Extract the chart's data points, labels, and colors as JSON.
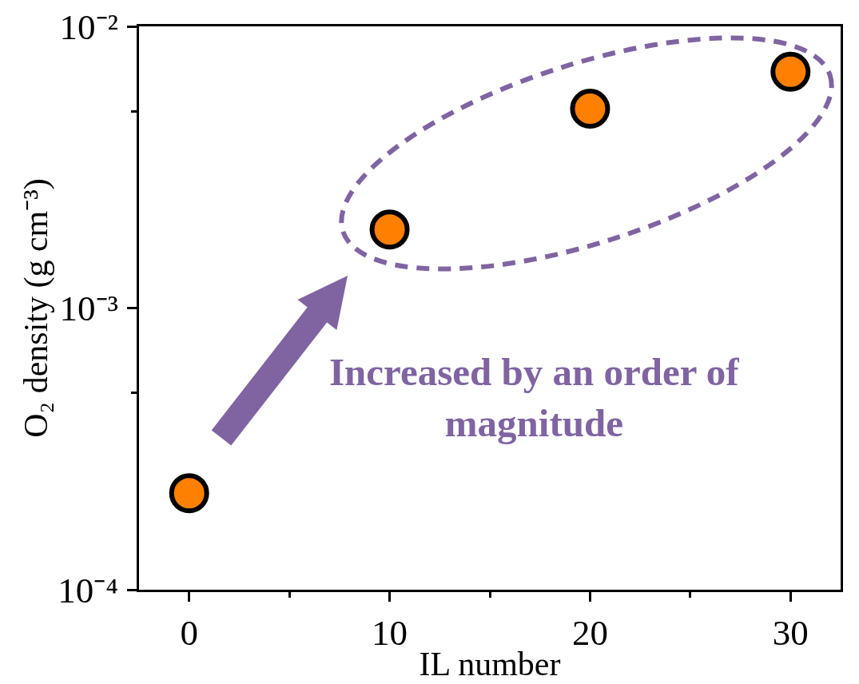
{
  "chart_data": {
    "type": "scatter",
    "xlabel": "IL number",
    "ylabel": "O₂ density (g cm⁻³)",
    "x": [
      0,
      10,
      20,
      30
    ],
    "series": [
      {
        "color": "#ff8000",
        "values": [
          0.00022,
          0.0019,
          0.0051,
          0.0069
        ]
      }
    ],
    "marker": "circle",
    "log": "y",
    "xlim": [
      -2.5,
      32.5
    ],
    "xticks": [
      0,
      {
        "value": 5,
        "label": null
      },
      10,
      {
        "value": 15,
        "label": null
      },
      20,
      {
        "value": 25,
        "label": null
      },
      30
    ],
    "ylim": [
      0.0001,
      0.01
    ],
    "yticks": [
      {
        "value": 0.0001,
        "label": "10⁻⁴"
      },
      {
        "value": 0.0005,
        "label": null
      },
      {
        "value": 0.001,
        "label": "10⁻³"
      },
      {
        "value": 0.005,
        "label": null
      },
      {
        "value": 0.01,
        "label": "10⁻²"
      }
    ],
    "annotations": [
      "Increased by an order of magnitude"
    ]
  }
}
